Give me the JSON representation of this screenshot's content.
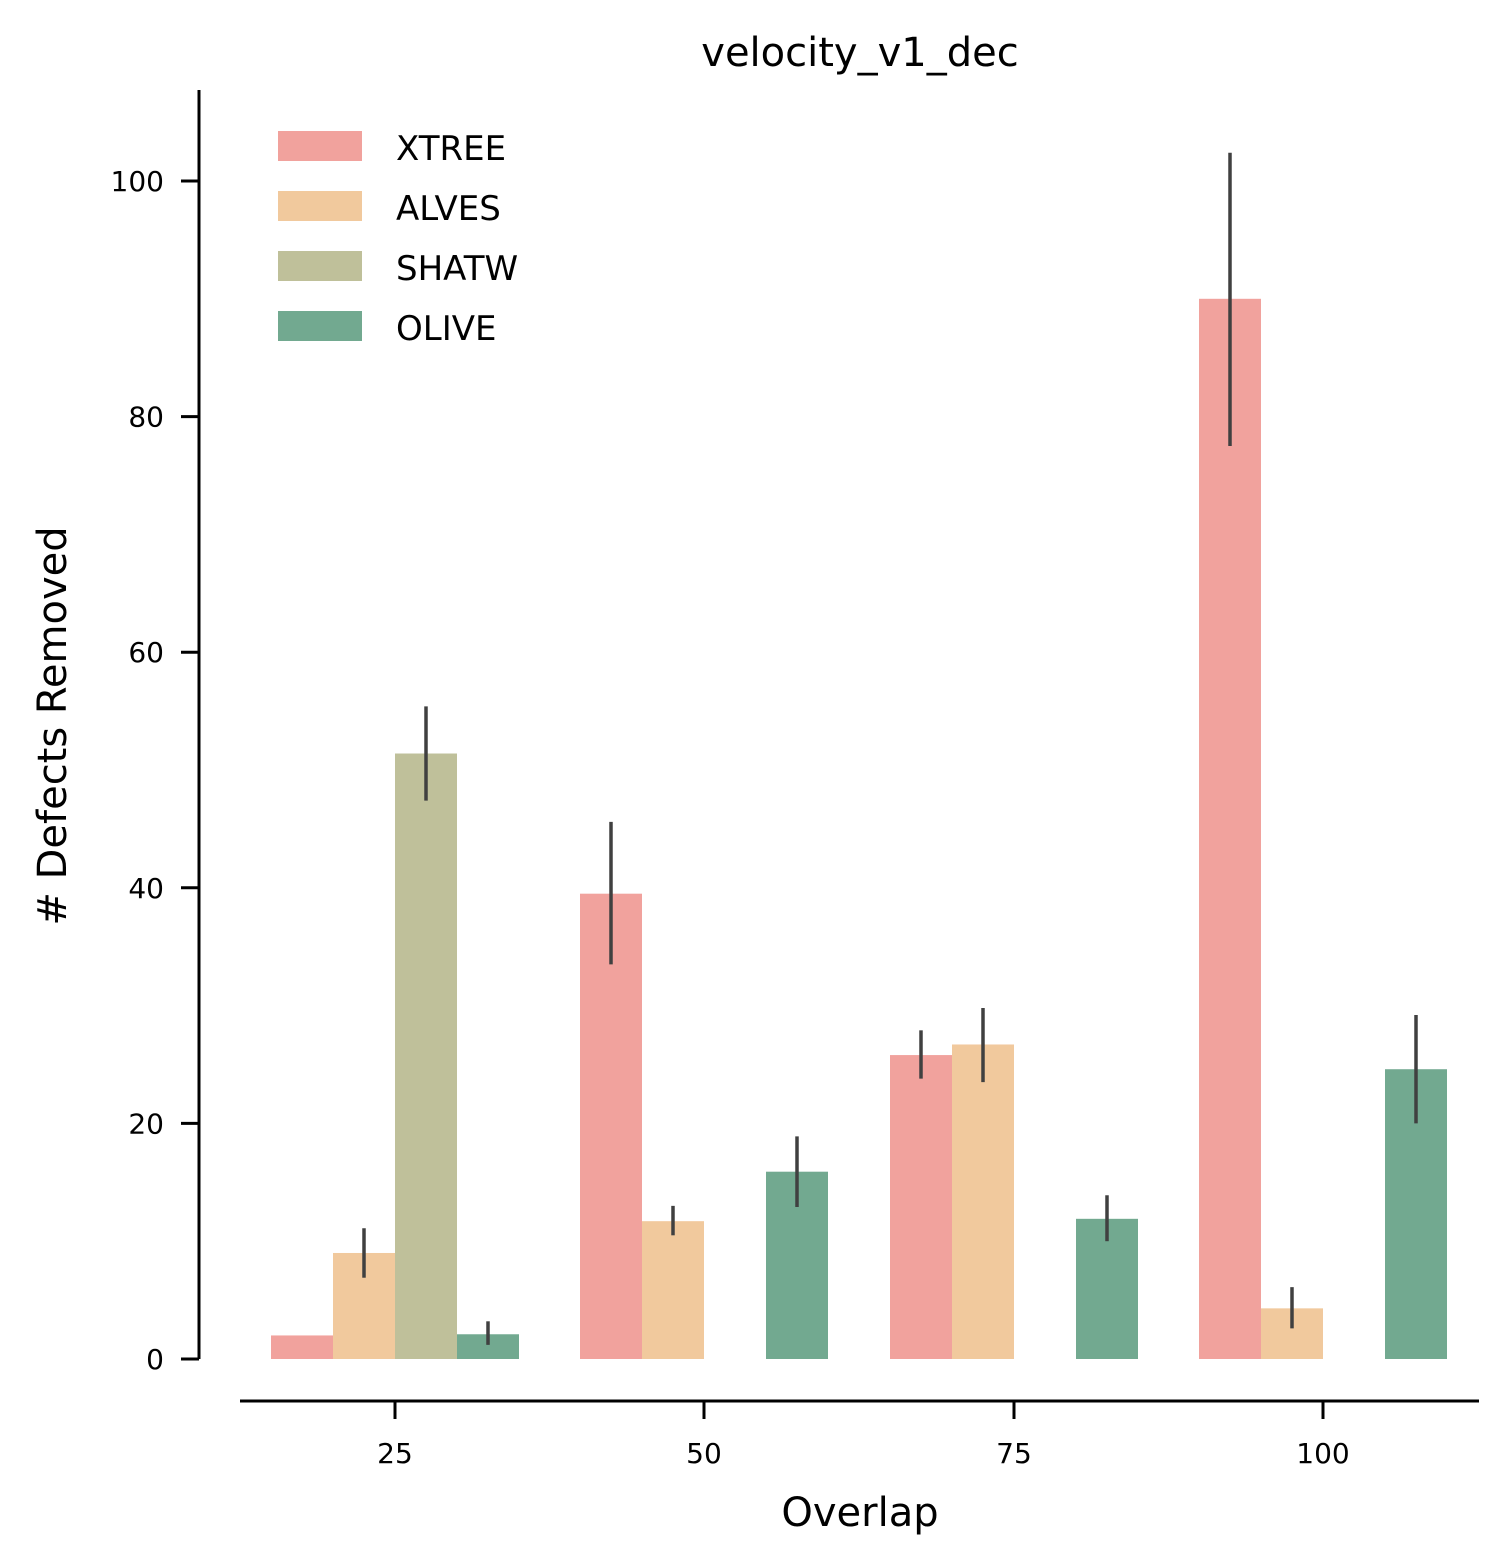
{
  "chart_data": {
    "type": "bar",
    "title": "velocity_v1_dec",
    "xlabel": "Overlap",
    "ylabel": "# Defects Removed",
    "categories": [
      "25",
      "50",
      "75",
      "100"
    ],
    "ylim": [
      0,
      107
    ],
    "yticks": [
      0,
      20,
      40,
      60,
      80,
      100
    ],
    "legend_position": "top-left",
    "grid": false,
    "series": [
      {
        "name": "XTREE",
        "color": "#f1a29d",
        "values": [
          2,
          39.5,
          25.8,
          90
        ],
        "err_low": [
          null,
          33.5,
          23.8,
          77.5
        ],
        "err_high": [
          null,
          45.6,
          27.9,
          102.4
        ]
      },
      {
        "name": "ALVES",
        "color": "#f1c99d",
        "values": [
          9,
          11.7,
          26.7,
          4.3
        ],
        "err_low": [
          6.9,
          10.5,
          23.5,
          2.6
        ],
        "err_high": [
          11.1,
          13.0,
          29.8,
          6.1
        ]
      },
      {
        "name": "SHATW",
        "color": "#bfc09a",
        "values": [
          51.4,
          0,
          0,
          0
        ],
        "err_low": [
          47.4,
          null,
          null,
          null
        ],
        "err_high": [
          55.4,
          null,
          null,
          null
        ]
      },
      {
        "name": "OLIVE",
        "color": "#72a990",
        "values": [
          2.1,
          15.9,
          11.9,
          24.6
        ],
        "err_low": [
          1.2,
          12.9,
          10.0,
          20.0
        ],
        "err_high": [
          3.2,
          18.9,
          13.9,
          29.2
        ]
      }
    ]
  }
}
